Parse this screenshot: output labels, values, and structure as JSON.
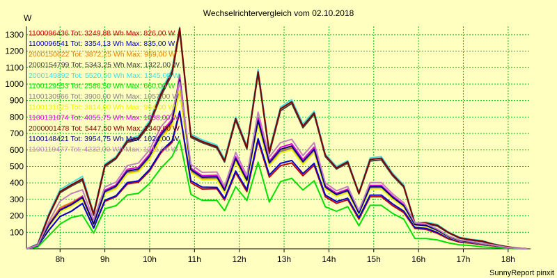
{
  "chart_data": {
    "type": "line",
    "title": "Wechselrichtervergleich vom 02.10.2018",
    "ylabel": "W",
    "xlabel": "",
    "footer": "SunnyReport pinxit",
    "xlim": [
      7.25,
      18.5
    ],
    "ylim": [
      0,
      1350
    ],
    "grid": true,
    "legend_position": "top-left",
    "x_ticks": [
      {
        "value": 8,
        "label": "8h"
      },
      {
        "value": 9,
        "label": "9h"
      },
      {
        "value": 10,
        "label": "10h"
      },
      {
        "value": 11,
        "label": "11h"
      },
      {
        "value": 12,
        "label": "12h"
      },
      {
        "value": 13,
        "label": "13h"
      },
      {
        "value": 14,
        "label": "14h"
      },
      {
        "value": 15,
        "label": "15h"
      },
      {
        "value": 16,
        "label": "16h"
      },
      {
        "value": 17,
        "label": "17h"
      },
      {
        "value": 18,
        "label": "18h"
      }
    ],
    "y_ticks": [
      100,
      200,
      300,
      400,
      500,
      600,
      700,
      800,
      900,
      1000,
      1100,
      1200,
      1300
    ],
    "x": [
      7.25,
      7.5,
      7.75,
      8.0,
      8.25,
      8.5,
      8.75,
      9.0,
      9.25,
      9.5,
      9.75,
      10.0,
      10.25,
      10.5,
      10.67,
      10.92,
      11.17,
      11.5,
      11.67,
      11.92,
      12.17,
      12.42,
      12.67,
      12.92,
      13.17,
      13.42,
      13.67,
      13.92,
      14.17,
      14.42,
      14.67,
      14.92,
      15.17,
      15.42,
      15.67,
      15.92,
      16.17,
      16.42,
      16.67,
      16.92,
      17.17,
      17.42,
      17.67,
      17.92,
      18.17,
      18.42
    ],
    "series": [
      {
        "name": "1100096436",
        "legend": "1100096436 Tot: 3249,88 Wh Max: 826,00 W",
        "color": "#c00000",
        "values": [
          0,
          16,
          113,
          196,
          228,
          275,
          126,
          288,
          317,
          393,
          404,
          473,
          582,
          646,
          826,
          401,
          363,
          365,
          296,
          461,
          347,
          655,
          435,
          505,
          521,
          444,
          507,
          315,
          276,
          298,
          180,
          316,
          316,
          262,
          220,
          123,
          118,
          94,
          60,
          40,
          34,
          24,
          18,
          8,
          2,
          0
        ]
      },
      {
        "name": "1100096541",
        "legend": "1100096541 Tot: 3354,13 Wh Max: 835,00 W",
        "color": "#0000d0",
        "values": [
          0,
          16,
          113,
          196,
          228,
          275,
          126,
          295,
          322,
          402,
          412,
          482,
          592,
          656,
          835,
          412,
          374,
          373,
          306,
          472,
          359,
          669,
          448,
          519,
          536,
          457,
          519,
          326,
          287,
          307,
          189,
          326,
          326,
          273,
          229,
          130,
          124,
          100,
          66,
          45,
          38,
          27,
          20,
          9,
          3,
          0
        ]
      },
      {
        "name": "2000150622",
        "legend": "2000150622 Tot: 3872,25 Wh Max: 959,00 W",
        "color": "#e08000",
        "values": [
          0,
          20,
          150,
          250,
          280,
          320,
          150,
          342,
          373,
          465,
          478,
          557,
          683,
          758,
          959,
          472,
          428,
          430,
          350,
          540,
          411,
          770,
          515,
          595,
          615,
          525,
          598,
          371,
          327,
          351,
          215,
          373,
          373,
          309,
          260,
          146,
          140,
          112,
          73,
          50,
          42,
          30,
          22,
          10,
          3,
          0
        ]
      },
      {
        "name": "2000154799",
        "legend": "2000154799 Tot: 5343,25 Wh Max: 1322,00 W",
        "color": "#404040",
        "values": [
          0,
          25,
          200,
          340,
          380,
          415,
          205,
          498,
          546,
          646,
          664,
          752,
          926,
          1060,
          1322,
          676,
          644,
          612,
          526,
          779,
          606,
          1063,
          577,
          838,
          882,
          735,
          816,
          560,
          484,
          520,
          333,
          533,
          540,
          444,
          374,
          150,
          152,
          138,
          96,
          64,
          52,
          44,
          26,
          14,
          4,
          0
        ]
      },
      {
        "name": "2000149892",
        "legend": "2000149892 Tot: 5520,50 Wh Max: 1345,00 W",
        "color": "#40e0e0",
        "values": [
          0,
          30,
          215,
          360,
          400,
          440,
          220,
          515,
          560,
          665,
          685,
          778,
          955,
          1090,
          1345,
          695,
          662,
          630,
          545,
          800,
          625,
          1090,
          598,
          860,
          905,
          758,
          835,
          575,
          500,
          535,
          343,
          552,
          560,
          460,
          388,
          158,
          162,
          148,
          102,
          70,
          58,
          50,
          30,
          16,
          5,
          0
        ]
      },
      {
        "name": "1100129553",
        "legend": "1100129553 Tot: 2586,50 Wh Max: 660,00 W",
        "color": "#00e000",
        "values": [
          0,
          10,
          80,
          150,
          190,
          205,
          95,
          243,
          262,
          327,
          337,
          398,
          490,
          560,
          660,
          330,
          294,
          294,
          231,
          377,
          293,
          526,
          284,
          408,
          428,
          357,
          413,
          255,
          228,
          256,
          140,
          264,
          264,
          215,
          180,
          62,
          62,
          54,
          36,
          24,
          20,
          12,
          8,
          4,
          1,
          0
        ]
      },
      {
        "name": "1100130966",
        "legend": "1100130966 Tot: 3900,00 Wh Max: 1057,00 W",
        "color": "#808080",
        "values": [
          0,
          18,
          140,
          230,
          262,
          305,
          148,
          340,
          370,
          460,
          472,
          550,
          680,
          790,
          1057,
          470,
          424,
          425,
          346,
          534,
          406,
          762,
          510,
          590,
          610,
          518,
          590,
          366,
          322,
          346,
          212,
          368,
          368,
          305,
          256,
          144,
          138,
          110,
          72,
          49,
          41,
          29,
          21,
          10,
          3,
          0
        ]
      },
      {
        "name": "1100131025",
        "legend": "1100131025 Tot: 3814,00 Wh Max: 964,00 W",
        "color": "#f0f000",
        "values": [
          0,
          18,
          135,
          225,
          258,
          300,
          145,
          335,
          365,
          455,
          468,
          545,
          670,
          745,
          964,
          462,
          418,
          420,
          340,
          528,
          400,
          752,
          503,
          582,
          602,
          512,
          584,
          362,
          318,
          342,
          209,
          364,
          364,
          302,
          253,
          142,
          136,
          108,
          71,
          48,
          40,
          29,
          21,
          10,
          3,
          0
        ]
      },
      {
        "name": "1100131074",
        "legend": "1100131074 Tot: 4055,75 Wh Max: 1038,00 W",
        "color": "#e000e0",
        "values": [
          0,
          19,
          145,
          240,
          272,
          318,
          153,
          356,
          388,
          482,
          495,
          575,
          705,
          785,
          1038,
          490,
          444,
          446,
          363,
          560,
          425,
          795,
          533,
          616,
          637,
          542,
          617,
          383,
          337,
          362,
          222,
          385,
          385,
          320,
          268,
          150,
          144,
          115,
          75,
          51,
          43,
          31,
          22,
          10,
          3,
          0
        ]
      },
      {
        "name": "2000001478",
        "legend": "2000001478 Tot: 5447,50 Wh Max: 1340,00 W",
        "color": "#800000",
        "values": [
          0,
          26,
          205,
          348,
          388,
          425,
          212,
          507,
          553,
          655,
          675,
          765,
          940,
          1075,
          1340,
          685,
          652,
          620,
          535,
          790,
          615,
          1075,
          587,
          850,
          893,
          745,
          825,
          567,
          492,
          528,
          338,
          542,
          550,
          452,
          380,
          154,
          157,
          143,
          99,
          67,
          55,
          47,
          28,
          15,
          5,
          0
        ]
      },
      {
        "name": "1100148421",
        "legend": "1100148421 Tot: 3954,75 Wh Max: 1024,00 W",
        "color": "#000080",
        "values": [
          0,
          18,
          142,
          235,
          268,
          312,
          150,
          348,
          380,
          472,
          485,
          563,
          693,
          772,
          1024,
          480,
          435,
          437,
          355,
          548,
          416,
          780,
          522,
          604,
          624,
          530,
          604,
          375,
          330,
          355,
          217,
          377,
          377,
          313,
          262,
          147,
          141,
          113,
          74,
          50,
          42,
          30,
          22,
          10,
          3,
          0
        ]
      },
      {
        "name": "1100119477",
        "legend": "1100119477 Tot: 4232,00 Wh Max: 1011,00 W",
        "color": "#c080c0",
        "values": [
          0,
          22,
          165,
          290,
          335,
          358,
          176,
          375,
          405,
          505,
          520,
          602,
          740,
          820,
          1011,
          512,
          464,
          466,
          380,
          585,
          445,
          830,
          557,
          644,
          665,
          566,
          644,
          400,
          352,
          378,
          232,
          402,
          402,
          334,
          280,
          157,
          151,
          120,
          78,
          53,
          45,
          32,
          23,
          11,
          3,
          0
        ]
      }
    ]
  }
}
